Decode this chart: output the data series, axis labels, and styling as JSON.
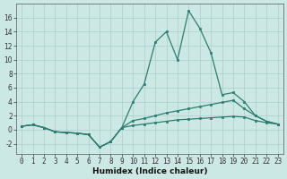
{
  "xlabel": "Humidex (Indice chaleur)",
  "x_values": [
    0,
    1,
    2,
    3,
    4,
    5,
    6,
    7,
    8,
    9,
    10,
    11,
    12,
    13,
    14,
    15,
    16,
    17,
    18,
    19,
    20,
    21,
    22,
    23
  ],
  "line1": [
    0.5,
    0.7,
    0.3,
    -0.3,
    -0.4,
    -0.5,
    -0.7,
    -2.5,
    -1.7,
    0.3,
    4.0,
    6.5,
    12.5,
    14.0,
    10.0,
    17.0,
    14.5,
    11.0,
    5.0,
    5.3,
    4.0,
    2.0,
    1.2,
    0.8
  ],
  "line2": [
    0.5,
    0.7,
    0.3,
    -0.3,
    -0.4,
    -0.5,
    -0.7,
    -2.5,
    -1.7,
    0.3,
    1.3,
    1.6,
    2.0,
    2.4,
    2.7,
    3.0,
    3.3,
    3.6,
    3.9,
    4.2,
    3.0,
    2.0,
    1.2,
    0.8
  ],
  "line3": [
    0.5,
    0.7,
    0.3,
    -0.3,
    -0.4,
    -0.5,
    -0.7,
    -2.5,
    -1.7,
    0.3,
    0.6,
    0.8,
    1.0,
    1.2,
    1.4,
    1.5,
    1.6,
    1.7,
    1.8,
    1.9,
    1.8,
    1.3,
    1.0,
    0.8
  ],
  "line_color": "#2e7d6e",
  "bg_color": "#cce8e4",
  "grid_color": "#aacfca",
  "ylim": [
    -3.5,
    18
  ],
  "yticks": [
    -2,
    0,
    2,
    4,
    6,
    8,
    10,
    12,
    14,
    16
  ],
  "xticks": [
    0,
    1,
    2,
    3,
    4,
    5,
    6,
    7,
    8,
    9,
    10,
    11,
    12,
    13,
    14,
    15,
    16,
    17,
    18,
    19,
    20,
    21,
    22,
    23
  ],
  "xlabel_fontsize": 6.5,
  "tick_fontsize": 5.5
}
